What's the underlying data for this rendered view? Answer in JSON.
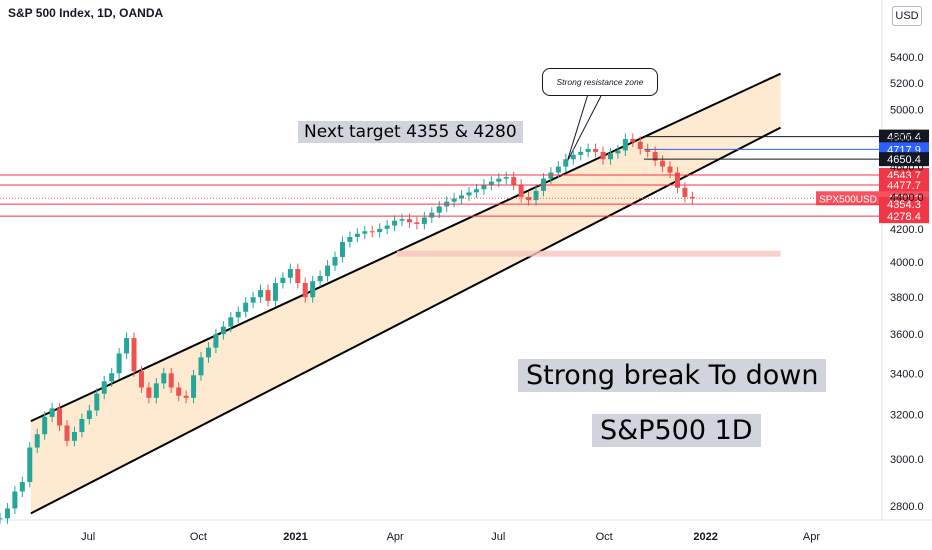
{
  "title": "S&P 500 Index, 1D, OANDA",
  "currency": "USD",
  "annotations": {
    "next_target": "Next target 4355 & 4280",
    "strong_break": "Strong break To down",
    "chart_label": "S&P500 1D",
    "resistance": "Strong resistance zone"
  },
  "colors": {
    "up": "#26a69a",
    "down": "#ef5350",
    "channel_fill": "#fde3c0",
    "support_line": "#f23645",
    "blue_line": "#2962ff",
    "zone": "#f7c5bf"
  },
  "chart_data": {
    "type": "line",
    "title": "S&P 500 Index, 1D, OANDA",
    "ylim": [
      2700,
      5600
    ],
    "y_scale": "log",
    "y_ticks": [
      "2800.0",
      "3000.0",
      "3200.0",
      "3400.0",
      "3600.0",
      "3800.0",
      "4000.0",
      "4200.0",
      "4400.0",
      "4600.0",
      "4800.0",
      "5000.0",
      "5200.0",
      "5400.0"
    ],
    "x_ticks": [
      "Jul",
      "Oct",
      "2021",
      "Apr",
      "Jul",
      "Oct",
      "2022",
      "Apr"
    ],
    "series": [
      {
        "values": [
          2750,
          2790,
          2860,
          2900,
          3050,
          3110,
          3190,
          3230,
          3150,
          3080,
          3120,
          3180,
          3220,
          3300,
          3360,
          3400,
          3500,
          3580,
          3410,
          3330,
          3280,
          3350,
          3400,
          3330,
          3290,
          3280,
          3390,
          3480,
          3530,
          3600,
          3640,
          3690,
          3720,
          3770,
          3800,
          3840,
          3780,
          3880,
          3910,
          3960,
          3880,
          3800,
          3890,
          3920,
          3980,
          4030,
          4120,
          4150,
          4170,
          4185,
          4180,
          4200,
          4220,
          4250,
          4260,
          4240,
          4230,
          4270,
          4300,
          4340,
          4370,
          4390,
          4410,
          4430,
          4450,
          4480,
          4500,
          4520,
          4530,
          4480,
          4400,
          4380,
          4440,
          4520,
          4560,
          4600,
          4650,
          4680,
          4700,
          4720,
          4700,
          4650,
          4690,
          4710,
          4790,
          4770,
          4720,
          4700,
          4640,
          4600,
          4560,
          4460,
          4400,
          4392
        ]
      }
    ],
    "levels": [
      {
        "label": "4806.4",
        "value": 4806.4,
        "color": "#131722"
      },
      {
        "label": "4717.9",
        "value": 4717.9,
        "color": "#2962ff"
      },
      {
        "label": "4650.4",
        "value": 4650.4,
        "color": "#131722"
      },
      {
        "label": "4543.7",
        "value": 4543.7,
        "color": "#f23645"
      },
      {
        "label": "4477.7",
        "value": 4477.7,
        "color": "#f23645"
      },
      {
        "label": "4391.8",
        "value": 4391.8,
        "color": "#f7525f",
        "name": "SPX500USD"
      },
      {
        "label": "4354.3",
        "value": 4354.3,
        "color": "#f23645"
      },
      {
        "label": "4278.4",
        "value": 4278.4,
        "color": "#f23645"
      }
    ],
    "zone": {
      "value": 4050
    },
    "channel": {
      "upper": [
        [
          0.035,
          3170
        ],
        [
          0.885,
          5270
        ]
      ],
      "lower": [
        [
          0.035,
          2770
        ],
        [
          0.885,
          4870
        ]
      ]
    }
  }
}
